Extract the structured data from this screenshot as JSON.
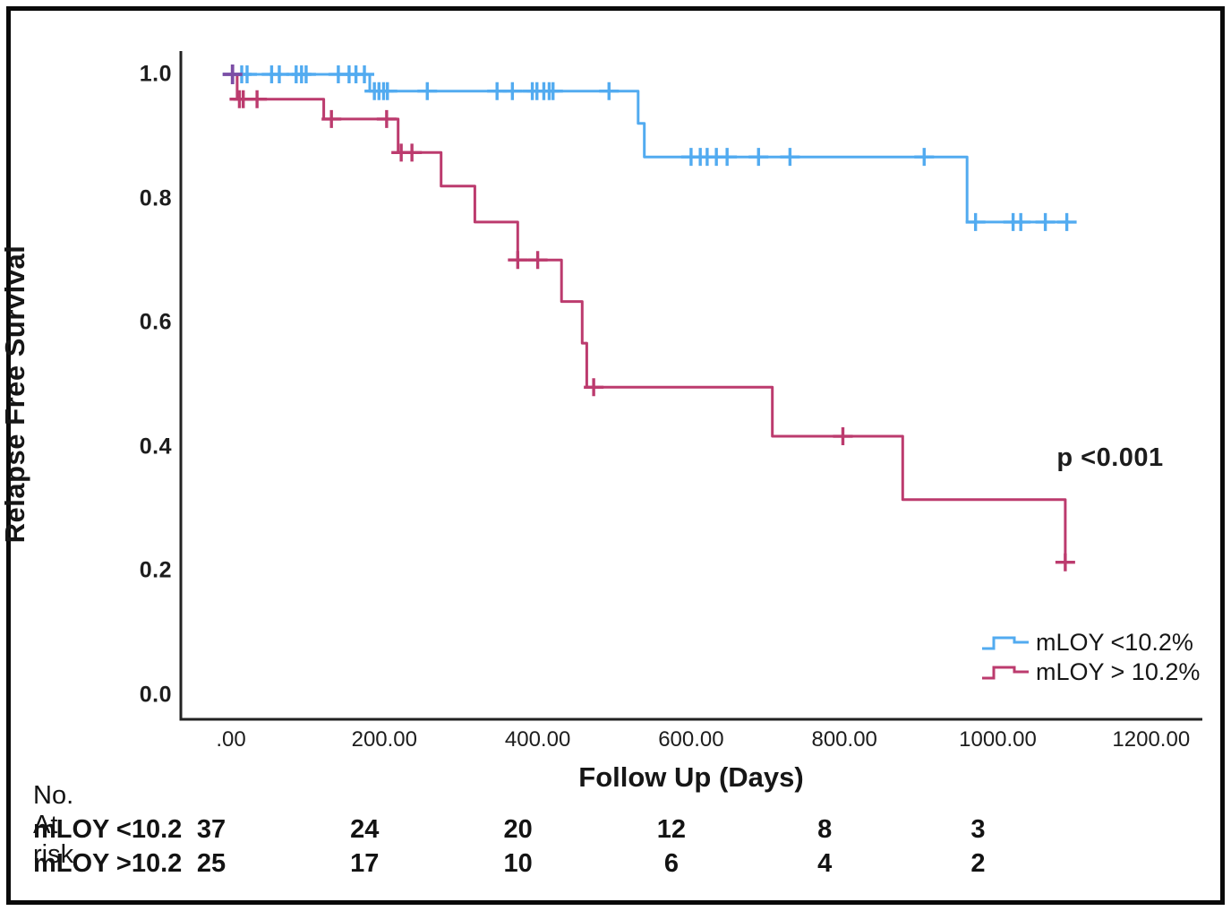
{
  "figure": {
    "background": "#ffffff",
    "border_color": "#0a0a0a"
  },
  "chart_data": {
    "type": "line",
    "subtype": "kaplan-meier-step",
    "title": "",
    "xlabel": "Follow Up (Days)",
    "ylabel": "Relapse Free Survival",
    "xlim": [
      -65,
      1267
    ],
    "ylim": [
      -0.04,
      1.04
    ],
    "grid": false,
    "legend_position": "inside-bottom-right",
    "x_ticks": [
      {
        "value": 0,
        "label": ".00"
      },
      {
        "value": 200,
        "label": "200.00"
      },
      {
        "value": 400,
        "label": "400.00"
      },
      {
        "value": 600,
        "label": "600.00"
      },
      {
        "value": 800,
        "label": "800.00"
      },
      {
        "value": 1000,
        "label": "1000.00"
      },
      {
        "value": 1200,
        "label": "1200.00"
      }
    ],
    "y_ticks": [
      {
        "value": 1.0,
        "label": "1.0"
      },
      {
        "value": 0.8,
        "label": "0.8"
      },
      {
        "value": 0.6,
        "label": "0.6"
      },
      {
        "value": 0.4,
        "label": "0.4"
      },
      {
        "value": 0.2,
        "label": "0.2"
      },
      {
        "value": 0.0,
        "label": "0.0"
      }
    ],
    "annotations": {
      "p_value": "p <0.001"
    },
    "series": [
      {
        "name": "mLOY <10.2%",
        "color": "#52ABF0",
        "steps": [
          [
            0,
            1.0
          ],
          [
            181,
            1.0
          ],
          [
            181,
            0.973
          ],
          [
            531,
            0.973
          ],
          [
            531,
            0.921
          ],
          [
            539,
            0.921
          ],
          [
            539,
            0.867
          ],
          [
            960,
            0.867
          ],
          [
            960,
            0.762
          ],
          [
            1093,
            0.762
          ]
        ],
        "censors": [
          [
            2,
            1.0
          ],
          [
            14,
            1.0
          ],
          [
            21,
            1.0
          ],
          [
            53,
            1.0
          ],
          [
            63,
            1.0
          ],
          [
            85,
            1.0
          ],
          [
            92,
            1.0
          ],
          [
            98,
            1.0
          ],
          [
            140,
            1.0
          ],
          [
            154,
            1.0
          ],
          [
            163,
            1.0
          ],
          [
            174,
            1.0
          ],
          [
            187,
            0.973
          ],
          [
            193,
            0.973
          ],
          [
            199,
            0.973
          ],
          [
            204,
            0.973
          ],
          [
            256,
            0.973
          ],
          [
            347,
            0.973
          ],
          [
            367,
            0.973
          ],
          [
            393,
            0.973
          ],
          [
            399,
            0.973
          ],
          [
            408,
            0.973
          ],
          [
            415,
            0.973
          ],
          [
            420,
            0.973
          ],
          [
            493,
            0.973
          ],
          [
            600,
            0.867
          ],
          [
            612,
            0.867
          ],
          [
            621,
            0.867
          ],
          [
            633,
            0.867
          ],
          [
            647,
            0.867
          ],
          [
            688,
            0.867
          ],
          [
            729,
            0.867
          ],
          [
            904,
            0.867
          ],
          [
            971,
            0.762
          ],
          [
            1020,
            0.762
          ],
          [
            1030,
            0.762
          ],
          [
            1062,
            0.762
          ],
          [
            1090,
            0.762
          ]
        ]
      },
      {
        "name": "mLOY > 10.2%",
        "color": "#BC3B6E",
        "steps": [
          [
            0,
            1.0
          ],
          [
            8,
            1.0
          ],
          [
            8,
            0.96
          ],
          [
            121,
            0.96
          ],
          [
            121,
            0.928
          ],
          [
            218,
            0.928
          ],
          [
            218,
            0.874
          ],
          [
            274,
            0.874
          ],
          [
            274,
            0.82
          ],
          [
            318,
            0.82
          ],
          [
            318,
            0.762
          ],
          [
            374,
            0.762
          ],
          [
            374,
            0.701
          ],
          [
            431,
            0.701
          ],
          [
            431,
            0.634
          ],
          [
            458,
            0.634
          ],
          [
            458,
            0.567
          ],
          [
            464,
            0.567
          ],
          [
            464,
            0.496
          ],
          [
            706,
            0.496
          ],
          [
            706,
            0.417
          ],
          [
            876,
            0.417
          ],
          [
            876,
            0.315
          ],
          [
            1088,
            0.315
          ],
          [
            1088,
            0.214
          ]
        ],
        "censors": [
          [
            11,
            0.96
          ],
          [
            16,
            0.96
          ],
          [
            34,
            0.96
          ],
          [
            131,
            0.928
          ],
          [
            203,
            0.928
          ],
          [
            222,
            0.874
          ],
          [
            236,
            0.874
          ],
          [
            374,
            0.701
          ],
          [
            400,
            0.701
          ],
          [
            473,
            0.496
          ],
          [
            798,
            0.417
          ],
          [
            1088,
            0.214
          ]
        ]
      }
    ],
    "overlap_censor": {
      "day": 2,
      "value": 1.0,
      "color": "#7C4EA5"
    },
    "risk_table": {
      "header": "No. At risk",
      "columns_days": [
        0,
        200,
        400,
        600,
        800,
        1000
      ],
      "rows": [
        {
          "label": "mLOY <10.2",
          "values": [
            "37",
            "24",
            "20",
            "12",
            "8",
            "3"
          ]
        },
        {
          "label": "mLOY >10.2",
          "values": [
            "25",
            "17",
            "10",
            "6",
            "4",
            "2"
          ]
        }
      ]
    }
  }
}
